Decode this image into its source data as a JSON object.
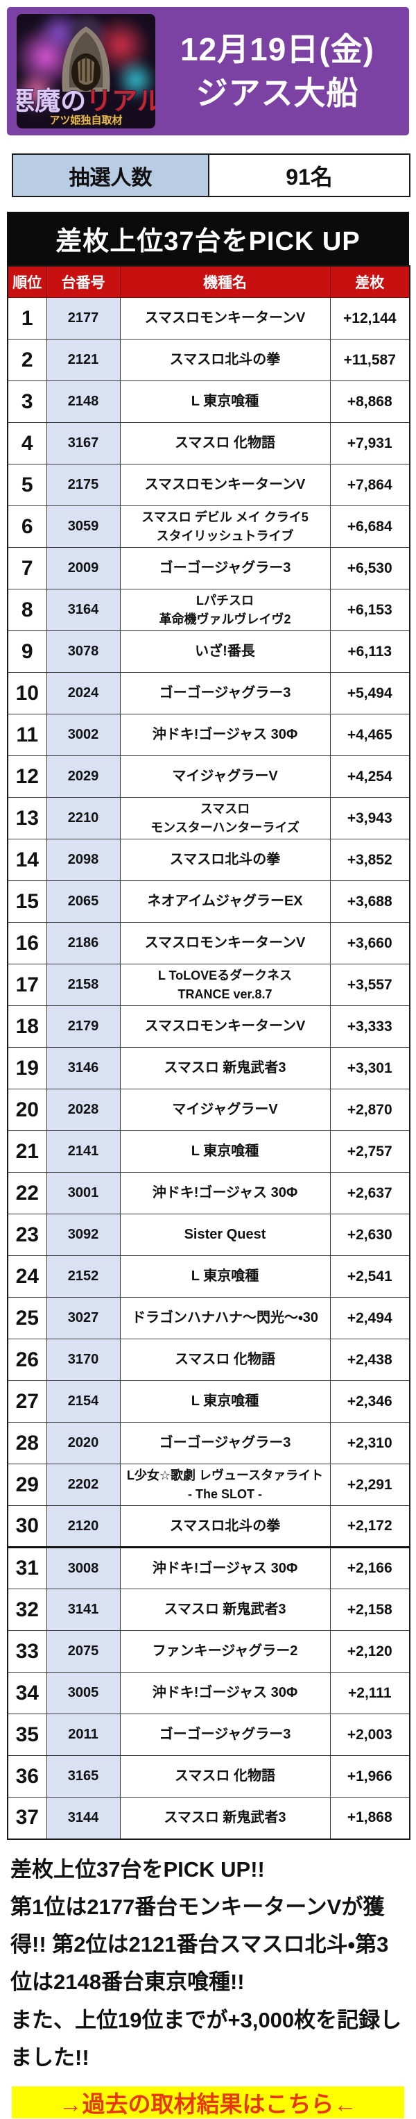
{
  "header": {
    "logo": {
      "title_left": "悪魔の",
      "title_right": "リアル",
      "subtitle": "アツ姫独自取材"
    },
    "date_line1": "12月19日(金)",
    "date_line2": "ジアス大船"
  },
  "lottery": {
    "label": "抽選人数",
    "value": "91名"
  },
  "pickup_banner": "差枚上位37台をPICK UP",
  "table": {
    "headers": {
      "rank": "順位",
      "machine_no": "台番号",
      "model": "機種名",
      "diff": "差枚"
    },
    "section_break_before_rank": 31,
    "rows": [
      {
        "rank": "1",
        "machine_no": "2177",
        "model": [
          "スマスロモンキーターンV"
        ],
        "diff": "+12,144"
      },
      {
        "rank": "2",
        "machine_no": "2121",
        "model": [
          "スマスロ北斗の拳"
        ],
        "diff": "+11,587"
      },
      {
        "rank": "3",
        "machine_no": "2148",
        "model": [
          "L 東京喰種"
        ],
        "diff": "+8,868"
      },
      {
        "rank": "4",
        "machine_no": "3167",
        "model": [
          "スマスロ 化物語"
        ],
        "diff": "+7,931"
      },
      {
        "rank": "5",
        "machine_no": "2175",
        "model": [
          "スマスロモンキーターンV"
        ],
        "diff": "+7,864"
      },
      {
        "rank": "6",
        "machine_no": "3059",
        "model": [
          "スマスロ デビル メイ クライ5",
          "スタイリッシュトライブ"
        ],
        "diff": "+6,684"
      },
      {
        "rank": "7",
        "machine_no": "2009",
        "model": [
          "ゴーゴージャグラー3"
        ],
        "diff": "+6,530"
      },
      {
        "rank": "8",
        "machine_no": "3164",
        "model": [
          "Lパチスロ",
          "革命機ヴァルヴレイヴ2"
        ],
        "diff": "+6,153"
      },
      {
        "rank": "9",
        "machine_no": "3078",
        "model": [
          "いざ!番長"
        ],
        "diff": "+6,113"
      },
      {
        "rank": "10",
        "machine_no": "2024",
        "model": [
          "ゴーゴージャグラー3"
        ],
        "diff": "+5,494"
      },
      {
        "rank": "11",
        "machine_no": "3002",
        "model": [
          "沖ドキ!ゴージャス 30Φ"
        ],
        "diff": "+4,465"
      },
      {
        "rank": "12",
        "machine_no": "2029",
        "model": [
          "マイジャグラーV"
        ],
        "diff": "+4,254"
      },
      {
        "rank": "13",
        "machine_no": "2210",
        "model": [
          "スマスロ",
          "モンスターハンターライズ"
        ],
        "diff": "+3,943"
      },
      {
        "rank": "14",
        "machine_no": "2098",
        "model": [
          "スマスロ北斗の拳"
        ],
        "diff": "+3,852"
      },
      {
        "rank": "15",
        "machine_no": "2065",
        "model": [
          "ネオアイムジャグラーEX"
        ],
        "diff": "+3,688"
      },
      {
        "rank": "16",
        "machine_no": "2186",
        "model": [
          "スマスロモンキーターンV"
        ],
        "diff": "+3,660"
      },
      {
        "rank": "17",
        "machine_no": "2158",
        "model": [
          "L ToLOVEるダークネス",
          "TRANCE ver.8.7"
        ],
        "diff": "+3,557"
      },
      {
        "rank": "18",
        "machine_no": "2179",
        "model": [
          "スマスロモンキーターンV"
        ],
        "diff": "+3,333"
      },
      {
        "rank": "19",
        "machine_no": "3146",
        "model": [
          "スマスロ 新鬼武者3"
        ],
        "diff": "+3,301"
      },
      {
        "rank": "20",
        "machine_no": "2028",
        "model": [
          "マイジャグラーV"
        ],
        "diff": "+2,870"
      },
      {
        "rank": "21",
        "machine_no": "2141",
        "model": [
          "L 東京喰種"
        ],
        "diff": "+2,757"
      },
      {
        "rank": "22",
        "machine_no": "3001",
        "model": [
          "沖ドキ!ゴージャス 30Φ"
        ],
        "diff": "+2,637"
      },
      {
        "rank": "23",
        "machine_no": "3092",
        "model": [
          "Sister Quest"
        ],
        "diff": "+2,630"
      },
      {
        "rank": "24",
        "machine_no": "2152",
        "model": [
          "L 東京喰種"
        ],
        "diff": "+2,541"
      },
      {
        "rank": "25",
        "machine_no": "3027",
        "model": [
          "ドラゴンハナハナ～閃光～・30"
        ],
        "diff": "+2,494"
      },
      {
        "rank": "26",
        "machine_no": "3170",
        "model": [
          "スマスロ 化物語"
        ],
        "diff": "+2,438"
      },
      {
        "rank": "27",
        "machine_no": "2154",
        "model": [
          "L 東京喰種"
        ],
        "diff": "+2,346"
      },
      {
        "rank": "28",
        "machine_no": "2020",
        "model": [
          "ゴーゴージャグラー3"
        ],
        "diff": "+2,310"
      },
      {
        "rank": "29",
        "machine_no": "2202",
        "model": [
          "L少女☆歌劇 レヴュースタァライト",
          "- The SLOT -"
        ],
        "diff": "+2,291"
      },
      {
        "rank": "30",
        "machine_no": "2120",
        "model": [
          "スマスロ北斗の拳"
        ],
        "diff": "+2,172"
      },
      {
        "rank": "31",
        "machine_no": "3008",
        "model": [
          "沖ドキ!ゴージャス 30Φ"
        ],
        "diff": "+2,166"
      },
      {
        "rank": "32",
        "machine_no": "3141",
        "model": [
          "スマスロ 新鬼武者3"
        ],
        "diff": "+2,158"
      },
      {
        "rank": "33",
        "machine_no": "2075",
        "model": [
          "ファンキージャグラー2"
        ],
        "diff": "+2,120"
      },
      {
        "rank": "34",
        "machine_no": "3005",
        "model": [
          "沖ドキ!ゴージャス 30Φ"
        ],
        "diff": "+2,111"
      },
      {
        "rank": "35",
        "machine_no": "2011",
        "model": [
          "ゴーゴージャグラー3"
        ],
        "diff": "+2,003"
      },
      {
        "rank": "36",
        "machine_no": "3165",
        "model": [
          "スマスロ 化物語"
        ],
        "diff": "+1,966"
      },
      {
        "rank": "37",
        "machine_no": "3144",
        "model": [
          "スマスロ 新鬼武者3"
        ],
        "diff": "+1,868"
      }
    ]
  },
  "summary": {
    "line1": "差枚上位37台をPICK UP!!",
    "line2": "第1位は2177番台モンキーターンVが獲得!! 第2位は2121番台スマスロ北斗・第3位は2148番台東京喰種!!",
    "line3": "また、上位19位までが+3,000枚を記録しました!!"
  },
  "past_link": "→過去の取材結果はこちら←",
  "colors": {
    "banner_purple": "#7b42a3",
    "table_header_red": "#c81010",
    "machine_cell_blue": "#d9e1f2",
    "lottery_label_blue": "#b8cce4",
    "pickup_black": "#0b0b0b",
    "link_yellow": "#ffff00",
    "link_text_red": "#e8380d"
  }
}
